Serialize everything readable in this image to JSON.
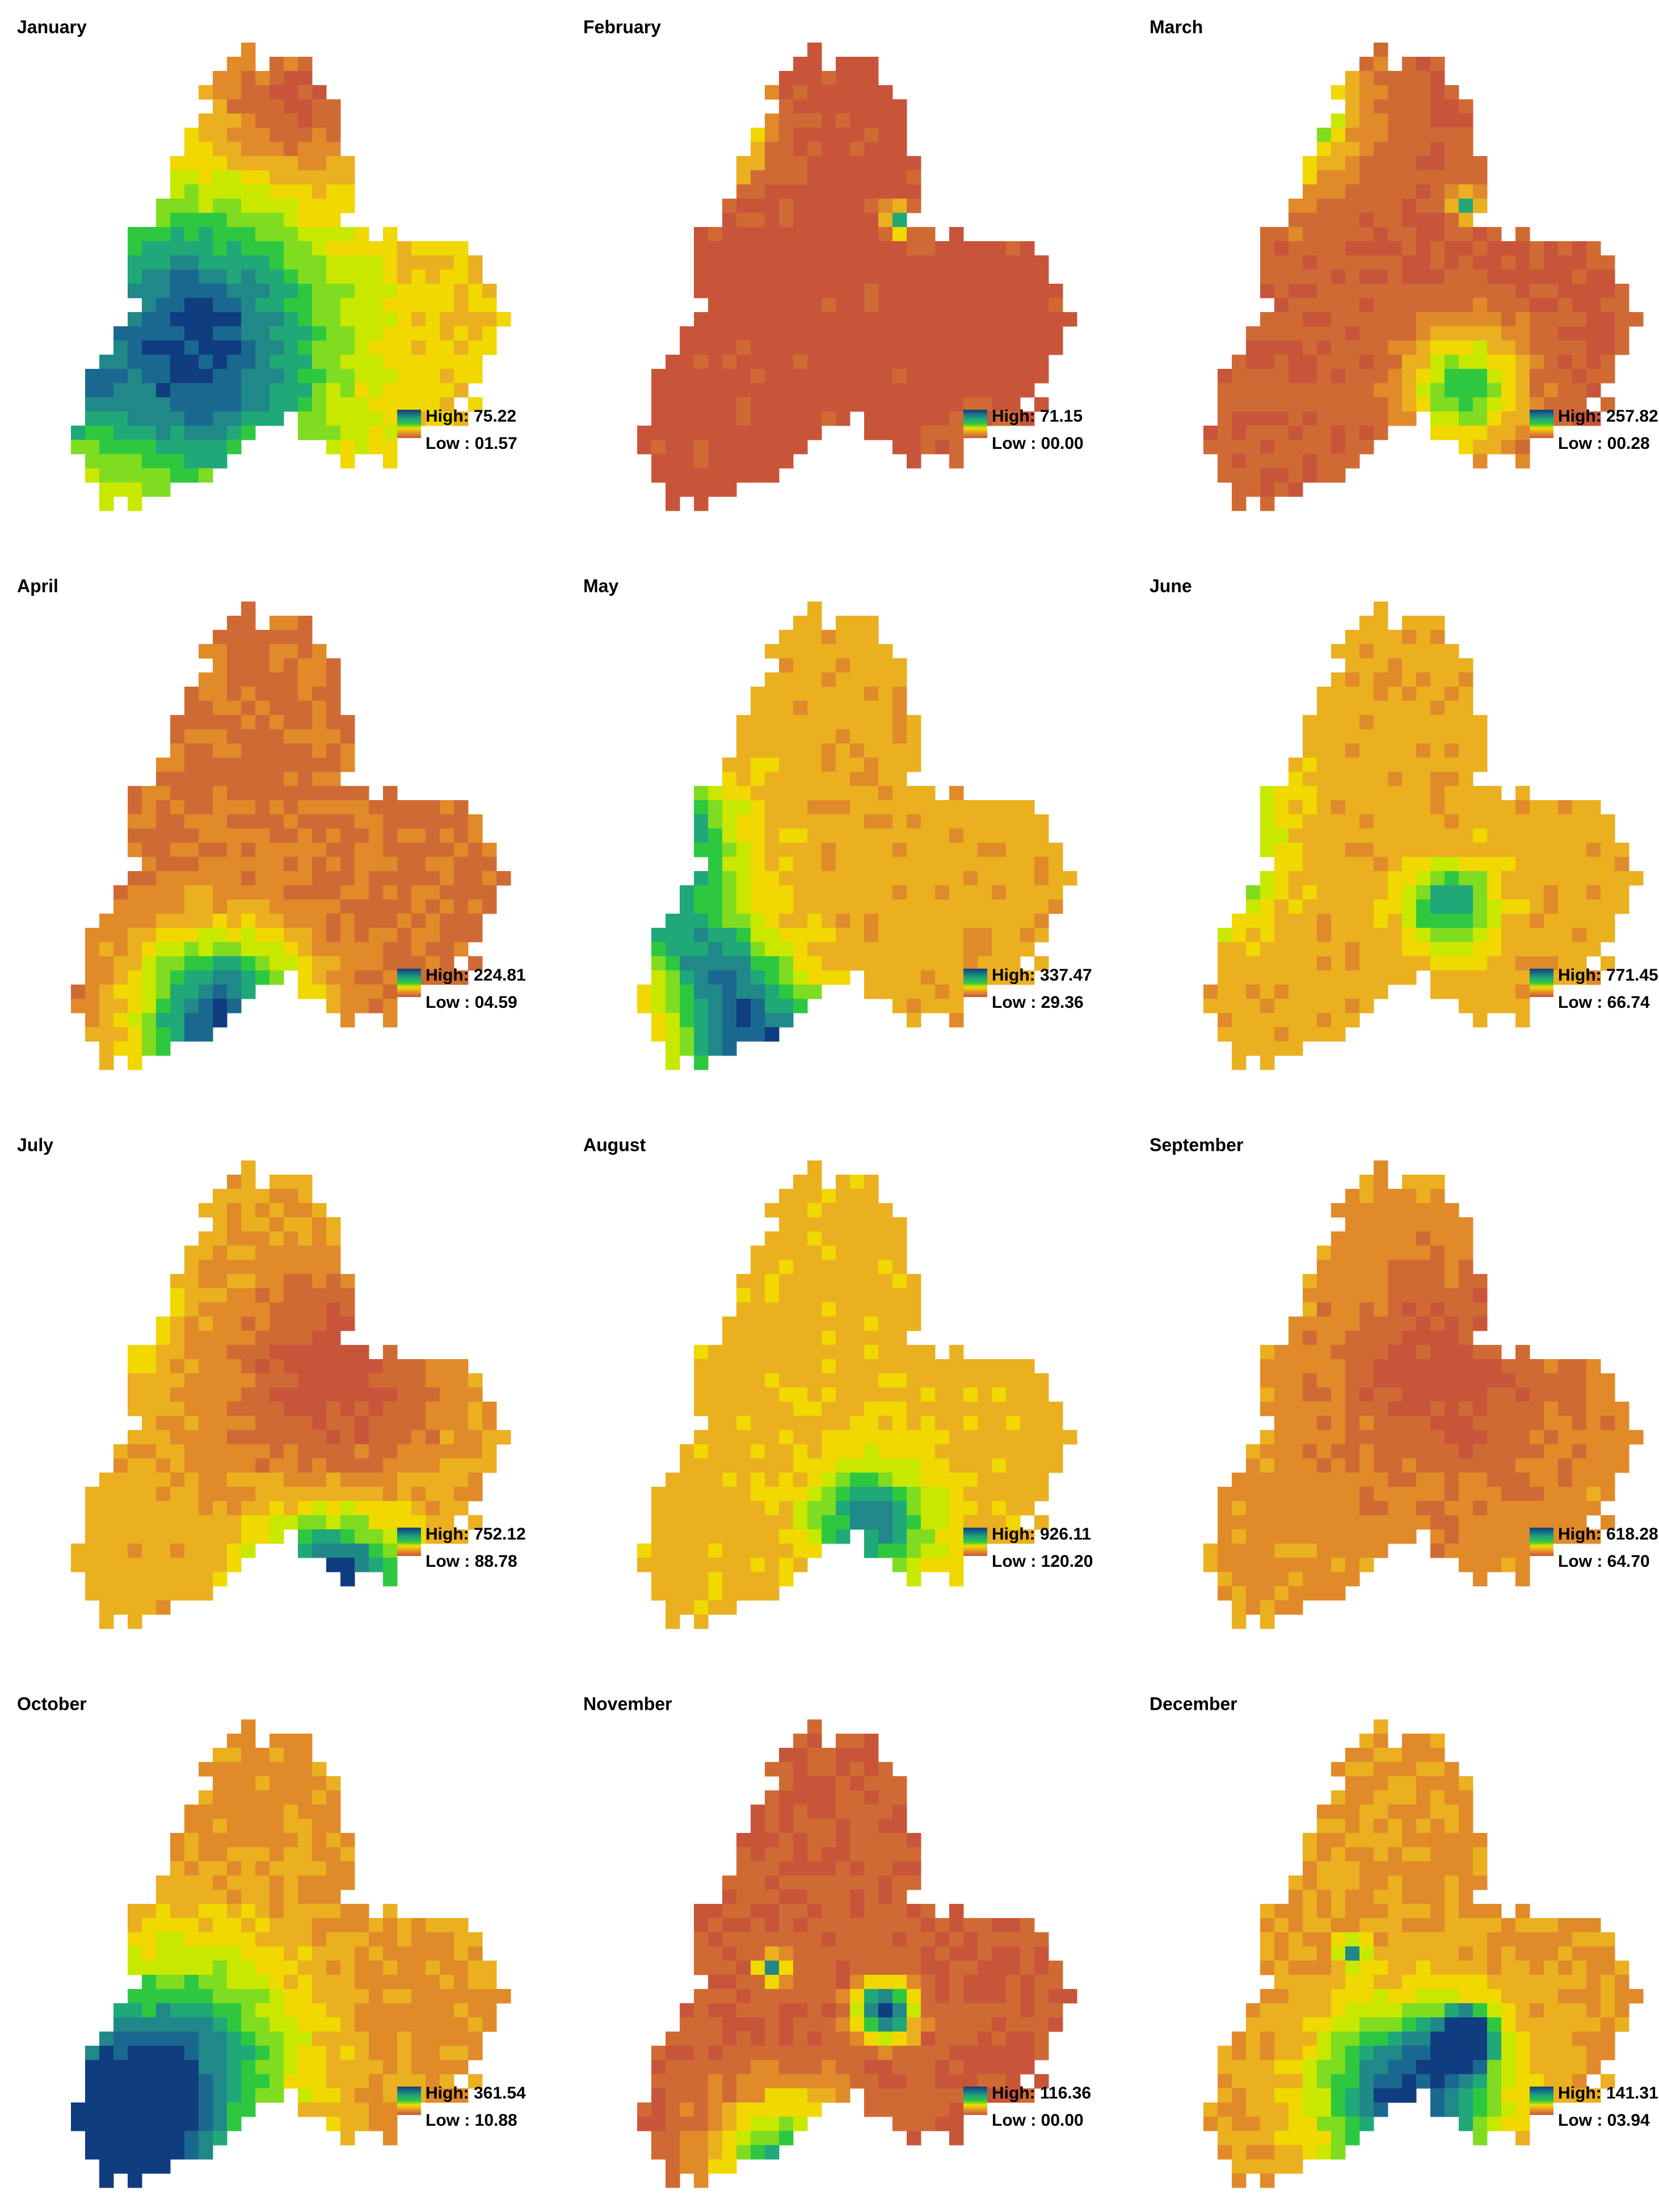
{
  "panels": [
    {
      "title": "January",
      "high": "High: 75.22",
      "low": "Low : 01.57"
    },
    {
      "title": "February",
      "high": "High: 71.15",
      "low": "Low : 00.00"
    },
    {
      "title": "March",
      "high": "High: 257.82",
      "low": "Low : 00.28"
    },
    {
      "title": "April",
      "high": "High: 224.81",
      "low": "Low : 04.59"
    },
    {
      "title": "May",
      "high": "High: 337.47",
      "low": "Low : 29.36"
    },
    {
      "title": "June",
      "high": "High: 771.45",
      "low": "Low : 66.74"
    },
    {
      "title": "July",
      "high": "High: 752.12",
      "low": "Low : 88.78"
    },
    {
      "title": "August",
      "high": "High: 926.11",
      "low": "Low : 120.20"
    },
    {
      "title": "September",
      "high": "High: 618.28",
      "low": "Low : 64.70"
    },
    {
      "title": "October",
      "high": "High: 361.54",
      "low": "Low : 10.88"
    },
    {
      "title": "November",
      "high": "High: 116.36",
      "low": "Low : 00.00"
    },
    {
      "title": "December",
      "high": "High: 141.31",
      "low": "Low : 03.94"
    }
  ]
}
